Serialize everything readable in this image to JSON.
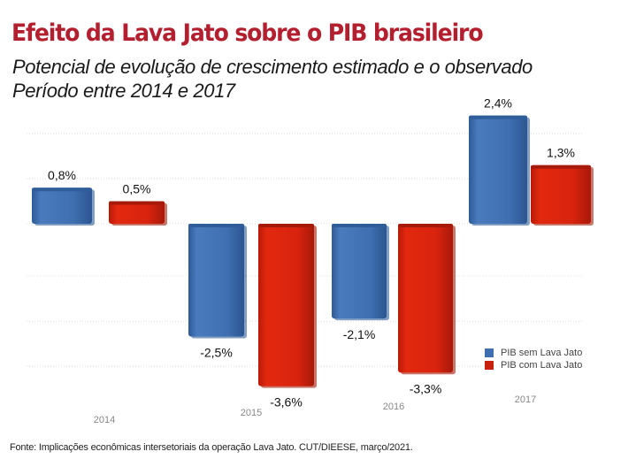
{
  "header": {
    "title": "Efeito da Lava Jato sobre o PIB brasileiro",
    "subtitle_line1": "Potencial de evolução de crescimento estimado e o observado",
    "subtitle_line2": "Período entre 2014 e 2017"
  },
  "colors": {
    "title": "#b41f2f",
    "series_sem": "#3f6fb0",
    "series_com": "#d8230e"
  },
  "legend": {
    "items": [
      {
        "label": "PIB sem Lava Jato",
        "color": "#3f6fb0"
      },
      {
        "label": "PIB com Lava Jato",
        "color": "#d8230e"
      }
    ]
  },
  "source": "Fonte: Implicações econômicas intersetoriais da operação Lava Jato. CUT/DIEESE, março/2021.",
  "chart_data": {
    "type": "bar",
    "title": "Efeito da Lava Jato sobre o PIB brasileiro",
    "subtitle": "Potencial de evolução de crescimento estimado e o observado — Período entre 2014 e 2017",
    "xlabel": "",
    "ylabel": "",
    "categories": [
      "2014",
      "2015",
      "2016",
      "2017"
    ],
    "series": [
      {
        "name": "PIB sem Lava Jato",
        "values": [
          0.8,
          -2.5,
          -2.1,
          2.4
        ],
        "labels": [
          "0,8%",
          "-2,5%",
          "-2,1%",
          "2,4%"
        ]
      },
      {
        "name": "PIB com Lava Jato",
        "values": [
          0.5,
          -3.6,
          -3.3,
          1.3
        ],
        "labels": [
          "0,5%",
          "-3,6%",
          "-3,3%",
          "1,3%"
        ]
      }
    ],
    "ylim": [
      -4,
      3
    ],
    "grid": true,
    "legend_position": "bottom-right",
    "unit": "%"
  }
}
